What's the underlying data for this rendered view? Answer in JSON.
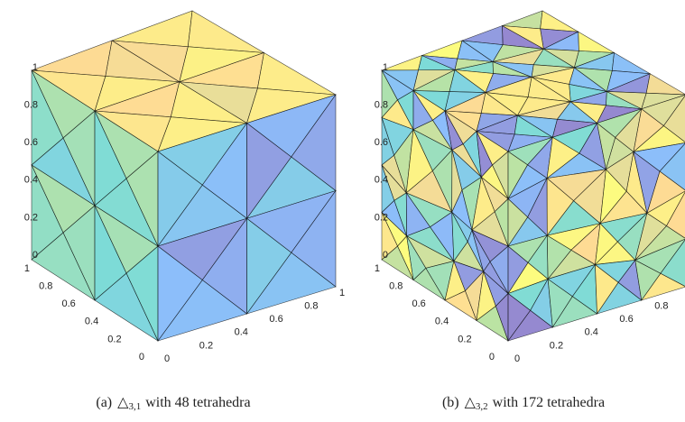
{
  "panels": [
    {
      "label": "(a)",
      "symbol": "△",
      "subscript": "3,1",
      "text": "with 48 tetrahedra",
      "zticks": [
        0,
        0.2,
        0.4,
        0.6,
        0.8,
        1
      ],
      "yticks": [
        0,
        0.2,
        0.4,
        0.6,
        0.8,
        1
      ],
      "xticks": [
        0,
        0.2,
        0.4,
        0.6,
        0.8,
        1
      ]
    },
    {
      "label": "(b)",
      "symbol": "△",
      "subscript": "3,2",
      "text": "with 172 tetrahedra",
      "zticks": [
        0,
        0.2,
        0.4,
        0.6,
        0.8,
        1
      ],
      "yticks": [
        0,
        0.2,
        0.4,
        0.6,
        0.8,
        1
      ],
      "xticks": [
        0,
        0.2,
        0.4,
        0.6,
        0.8
      ]
    }
  ]
}
